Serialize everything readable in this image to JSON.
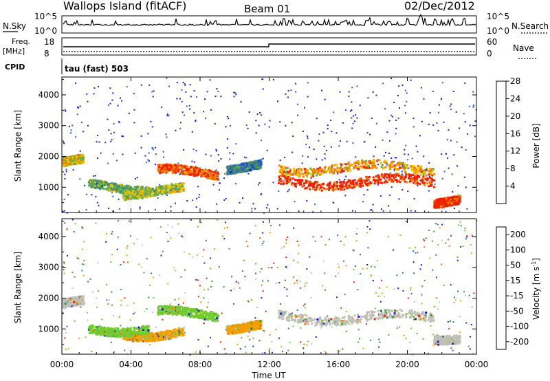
{
  "header": {
    "title": "Wallops Island (fitACF)",
    "beam": "Beam 01",
    "date": "02/Dec/2012"
  },
  "top_panels": {
    "nsky_label": "N.Sky",
    "nsky_ticks": [
      "10^5",
      "10^0"
    ],
    "nsearch_label": "N.Search",
    "nsearch_ticks": [
      "10^5",
      "10^0"
    ],
    "freq_label": "Freq.",
    "freq_unit": "[MHz]",
    "freq_ticks": [
      "18",
      "8"
    ],
    "nave_label": "Nave",
    "nave_ticks": [
      "60",
      "0"
    ],
    "cpid_label": "CPID",
    "cpid_text": "tau (fast) 503"
  },
  "chart_data": [
    {
      "type": "heatmap",
      "name": "power",
      "ylabel": "Slant Range [km]",
      "xlabel": "",
      "ylim": [
        180,
        4580
      ],
      "xlim": [
        0,
        24
      ],
      "yticks": [
        1000,
        2000,
        3000,
        4000
      ],
      "colorbar": {
        "label": "Power [dB]",
        "ticks": [
          "4",
          "8",
          "12",
          "16",
          "20",
          "24",
          "28"
        ],
        "colors": [
          "#1a1ad6",
          "#2255c8",
          "#4a8c6a",
          "#60b050",
          "#f0c000",
          "#f08000",
          "#ee2000"
        ]
      },
      "features": [
        {
          "t0": 0.0,
          "t1": 1.2,
          "r": 1850,
          "level": 0.65
        },
        {
          "t0": 1.5,
          "t1": 5.0,
          "r": 1050,
          "level": 0.45
        },
        {
          "t0": 3.5,
          "t1": 7.0,
          "r": 900,
          "level": 0.55
        },
        {
          "t0": 5.5,
          "t1": 9.0,
          "r": 1500,
          "level": 0.88
        },
        {
          "t0": 9.5,
          "t1": 11.5,
          "r": 1700,
          "level": 0.3
        },
        {
          "t0": 12.5,
          "t1": 21.5,
          "r": 1200,
          "level": 0.95
        },
        {
          "t0": 12.5,
          "t1": 21.5,
          "r": 1650,
          "level": 0.72
        },
        {
          "t0": 21.5,
          "t1": 23.0,
          "r": 600,
          "level": 0.95
        }
      ]
    },
    {
      "type": "heatmap",
      "name": "velocity",
      "ylabel": "Slant Range [km]",
      "xlabel": "Time UT",
      "ylim": [
        180,
        4580
      ],
      "xlim": [
        0,
        24
      ],
      "yticks": [
        1000,
        2000,
        3000,
        4000
      ],
      "xticks": [
        "00:00",
        "04:00",
        "08:00",
        "12:00",
        "16:00",
        "20:00",
        "00:00"
      ],
      "colorbar": {
        "label": "Velocity [m s",
        "label_sup": "-1",
        "label_end": "]",
        "ticks": [
          "200",
          "100",
          "50",
          "15",
          "-15",
          "-50",
          "-100",
          "-200"
        ],
        "colors": [
          "#1a1ad6",
          "#2a7a60",
          "#3c9a3c",
          "#70cc30",
          "#c0c0b8",
          "#f0a000",
          "#f07000",
          "#ee2000"
        ]
      },
      "features": [
        {
          "t0": 0.0,
          "t1": 1.2,
          "r": 1850,
          "color": "#c0c0b8"
        },
        {
          "t0": 3.5,
          "t1": 7.0,
          "r": 900,
          "color": "#f0a000"
        },
        {
          "t0": 1.5,
          "t1": 5.0,
          "r": 1050,
          "color": "#70cc30"
        },
        {
          "t0": 5.5,
          "t1": 9.0,
          "r": 1500,
          "color": "#70cc30"
        },
        {
          "t0": 9.5,
          "t1": 11.5,
          "r": 1100,
          "color": "#f0a000"
        },
        {
          "t0": 12.5,
          "t1": 21.5,
          "r": 1400,
          "color": "#c0c0b8"
        },
        {
          "t0": 21.5,
          "t1": 23.0,
          "r": 800,
          "color": "#c0c0b8"
        }
      ]
    }
  ]
}
